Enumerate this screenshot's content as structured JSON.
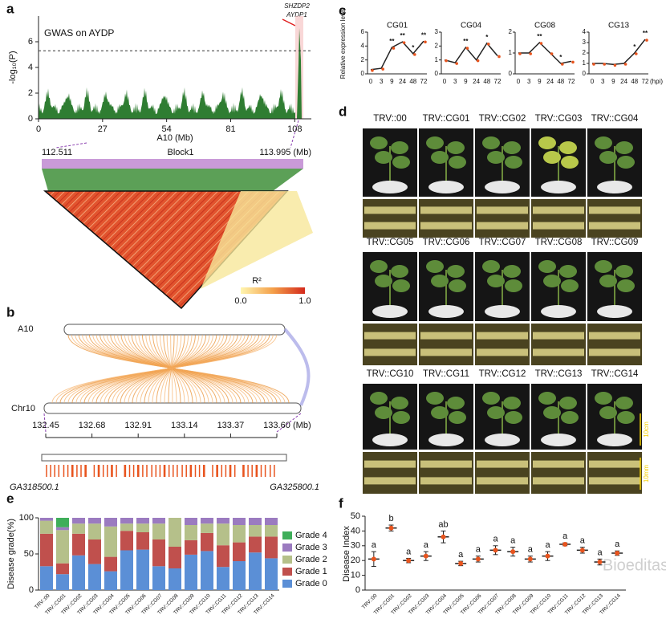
{
  "panels": {
    "a": {
      "label": "a",
      "title": "GWAS on AYDP",
      "y_label": "-log₁₀(P)",
      "x_label": "A10 (Mb)",
      "xlim": [
        0,
        115
      ],
      "xticks": [
        0,
        27,
        54,
        81,
        108
      ],
      "ylim": [
        0,
        8
      ],
      "yticks": [
        0,
        2,
        4,
        6
      ],
      "threshold": 5.3,
      "genes": [
        "SHZDP2",
        "AYDP1"
      ],
      "block_start": "112.511",
      "block_end": "113.995 (Mb)",
      "block_name": "Block1",
      "legend_title": "R²",
      "legend_min": "0.0",
      "legend_max": "1.0"
    },
    "b": {
      "label": "b",
      "top_chrom": "A10",
      "bottom_chrom": "Chr10",
      "xlim": [
        132.45,
        133.6
      ],
      "xticks": [
        132.45,
        132.68,
        132.91,
        133.14,
        133.37,
        {
          "value": 133.6,
          "label": "133.60"
        }
      ],
      "unit": "(Mb)",
      "gene_left": "GA318500.1",
      "gene_right": "GA325800.1"
    },
    "c": {
      "label": "c",
      "y_label": "Relative expression level",
      "categories": [
        "0",
        "3",
        "9",
        "24",
        "48",
        "72"
      ],
      "unit": "(hpi)",
      "charts": [
        {
          "title": "CG01",
          "ylim": [
            0,
            6
          ],
          "yticks": [
            0,
            2,
            4,
            6
          ],
          "values": [
            0.6,
            0.8,
            3.8,
            4.6,
            2.9,
            4.7
          ],
          "significance": [
            null,
            null,
            "**",
            "**",
            "*",
            "**"
          ]
        },
        {
          "title": "CG04",
          "ylim": [
            0,
            3
          ],
          "yticks": [
            0,
            1,
            2,
            3
          ],
          "values": [
            1.0,
            0.8,
            1.9,
            1.0,
            2.2,
            1.3
          ],
          "significance": [
            null,
            null,
            "**",
            null,
            "*",
            null
          ]
        },
        {
          "title": "CG08",
          "ylim": [
            0,
            2
          ],
          "yticks": [
            0,
            1,
            2
          ],
          "values": [
            1.0,
            1.0,
            1.5,
            1.0,
            0.5,
            0.6
          ],
          "significance": [
            null,
            null,
            "**",
            null,
            "*",
            null
          ]
        },
        {
          "title": "CG13",
          "ylim": [
            0,
            4
          ],
          "yticks": [
            0,
            1,
            2,
            3,
            4
          ],
          "values": [
            1.0,
            1.0,
            0.9,
            1.0,
            2.0,
            3.3
          ],
          "significance": [
            null,
            null,
            null,
            null,
            "*",
            "**"
          ]
        }
      ],
      "color": "#222222",
      "point_color": "#e8541e"
    },
    "d": {
      "label": "d",
      "plants": [
        "TRV::00",
        "TRV::CG01",
        "TRV::CG02",
        "TRV::CG03",
        "TRV::CG04",
        "TRV::CG05",
        "TRV::CG06",
        "TRV::CG07",
        "TRV::CG08",
        "TRV::CG09",
        "TRV::CG10",
        "TRV::CG11",
        "TRV::CG12",
        "TRV::CG13",
        "TRV::CG14"
      ],
      "scale_plant": "10cm",
      "scale_stem": "10mm"
    },
    "e": {
      "label": "e",
      "y_label": "Disease  grade(%)",
      "ylim": [
        0,
        100
      ],
      "yticks": [
        0,
        50,
        100
      ],
      "categories": [
        "TRV::00",
        "TRV::CG01",
        "TRV::CG02",
        "TRV::CG03",
        "TRV::CG04",
        "TRV::CG05",
        "TRV::CG06",
        "TRV::CG07",
        "TRV::CG08",
        "TRV::CG09",
        "TRV::CG10",
        "TRV::CG11",
        "TRV::CG12",
        "TRV::CG13",
        "TRV::CG14"
      ],
      "series": [
        {
          "name": "Grade 0",
          "color": "#5b8fd6",
          "values": [
            33,
            22,
            48,
            36,
            26,
            55,
            56,
            33,
            30,
            49,
            54,
            32,
            40,
            52,
            44
          ]
        },
        {
          "name": "Grade 1",
          "color": "#c0504d",
          "values": [
            45,
            15,
            30,
            34,
            20,
            27,
            24,
            37,
            30,
            20,
            25,
            30,
            26,
            22,
            30
          ]
        },
        {
          "name": "Grade 2",
          "color": "#b5c08a",
          "values": [
            18,
            46,
            14,
            22,
            42,
            10,
            12,
            22,
            40,
            21,
            13,
            30,
            24,
            16,
            16
          ]
        },
        {
          "name": "Grade 3",
          "color": "#9b7bc0",
          "values": [
            4,
            4,
            8,
            8,
            12,
            8,
            8,
            8,
            0,
            10,
            8,
            8,
            10,
            10,
            10
          ]
        },
        {
          "name": "Grade 4",
          "color": "#3fae5a",
          "values": [
            0,
            13,
            0,
            0,
            0,
            0,
            0,
            0,
            0,
            0,
            0,
            0,
            0,
            0,
            0
          ]
        }
      ]
    },
    "f": {
      "label": "f",
      "y_label": "Disease Index",
      "ylim": [
        0,
        50
      ],
      "yticks": [
        0,
        10,
        20,
        30,
        40,
        50
      ],
      "color": "#e8541e",
      "categories": [
        "TRV::00",
        "TRV::CG01",
        "TRV::CG02",
        "TRV::CG03",
        "TRV::CG04",
        "TRV::CG05",
        "TRV::CG06",
        "TRV::CG07",
        "TRV::CG08",
        "TRV::CG09",
        "TRV::CG10",
        "TRV::CG11",
        "TRV::CG12",
        "TRV::CG13",
        "TRV::CG14"
      ],
      "values": [
        21,
        42,
        20,
        23,
        36,
        18,
        21,
        27,
        26,
        21,
        23,
        31,
        27,
        19,
        25
      ],
      "errors": [
        5,
        2,
        1.5,
        3,
        4,
        1.5,
        2,
        3,
        3,
        2,
        3,
        1,
        2,
        2,
        1.5
      ],
      "letters": [
        "a",
        "b",
        "a",
        "a",
        "ab",
        "a",
        "a",
        "a",
        "a",
        "a",
        "a",
        "a",
        "a",
        "a",
        "a"
      ]
    },
    "watermark": "Bioeditas"
  }
}
